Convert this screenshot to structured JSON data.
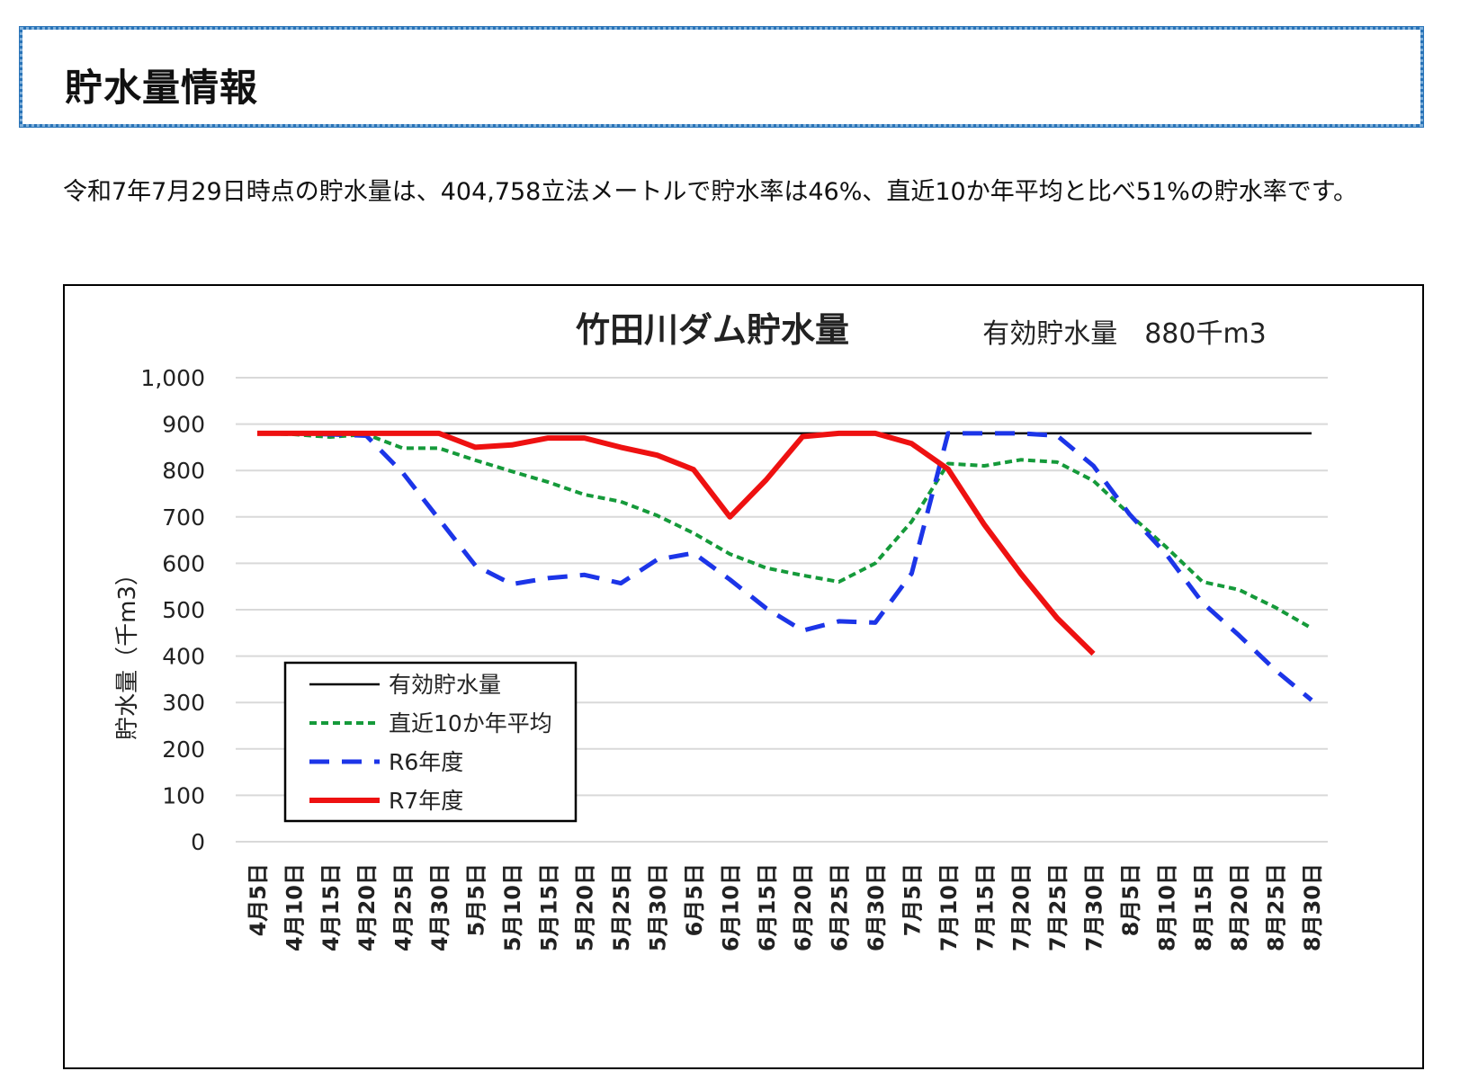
{
  "heading": {
    "title": "貯水量情報"
  },
  "summary": {
    "text": "令和7年7月29日時点の貯水量は、404,758立法メートルで貯水率は46%、直近10か年平均と比べ51%の貯水率です。"
  },
  "chart_data": {
    "type": "line",
    "title": "竹田川ダム貯水量",
    "subtitle": "有効貯水量　880千m3",
    "ylabel": "貯水量（千m3）",
    "xlabel": "",
    "ylim": [
      0,
      1000
    ],
    "yticks": [
      0,
      100,
      200,
      300,
      400,
      500,
      600,
      700,
      800,
      900,
      1000
    ],
    "ytick_labels": [
      "0",
      "100",
      "200",
      "300",
      "400",
      "500",
      "600",
      "700",
      "800",
      "900",
      "1,000"
    ],
    "grid": true,
    "legend_position": "bottom-left",
    "categories": [
      "4月5日",
      "4月10日",
      "4月15日",
      "4月20日",
      "4月25日",
      "4月30日",
      "5月5日",
      "5月10日",
      "5月15日",
      "5月20日",
      "5月25日",
      "5月30日",
      "6月5日",
      "6月10日",
      "6月15日",
      "6月20日",
      "6月25日",
      "6月30日",
      "7月5日",
      "7月10日",
      "7月15日",
      "7月20日",
      "7月25日",
      "7月30日",
      "8月5日",
      "8月10日",
      "8月15日",
      "8月20日",
      "8月25日",
      "8月30日"
    ],
    "series": [
      {
        "name": "有効貯水量",
        "color": "#000000",
        "style": "solid",
        "width": 2.5,
        "values": [
          880,
          880,
          880,
          880,
          880,
          880,
          880,
          880,
          880,
          880,
          880,
          880,
          880,
          880,
          880,
          880,
          880,
          880,
          880,
          880,
          880,
          880,
          880,
          880,
          880,
          880,
          880,
          880,
          880,
          880
        ]
      },
      {
        "name": "直近10か年平均",
        "color": "#159a3a",
        "style": "dotted",
        "width": 4,
        "values": [
          880,
          878,
          872,
          878,
          848,
          848,
          822,
          798,
          775,
          748,
          733,
          703,
          665,
          620,
          590,
          574,
          560,
          600,
          690,
          815,
          810,
          823,
          818,
          778,
          705,
          635,
          560,
          543,
          505,
          460
        ]
      },
      {
        "name": "R6年度",
        "color": "#1c35e8",
        "style": "dashed",
        "width": 5,
        "values": [
          880,
          880,
          878,
          875,
          795,
          695,
          595,
          555,
          568,
          575,
          557,
          608,
          622,
          565,
          503,
          455,
          475,
          472,
          578,
          880,
          880,
          880,
          875,
          810,
          705,
          620,
          515,
          445,
          370,
          305
        ]
      },
      {
        "name": "R7年度",
        "color": "#ee1111",
        "style": "solid",
        "width": 6,
        "values": [
          880,
          880,
          880,
          880,
          880,
          880,
          850,
          855,
          870,
          870,
          850,
          833,
          802,
          700,
          780,
          873,
          880,
          880,
          858,
          803,
          683,
          578,
          482,
          405,
          null,
          null,
          null,
          null,
          null,
          null
        ]
      }
    ]
  }
}
